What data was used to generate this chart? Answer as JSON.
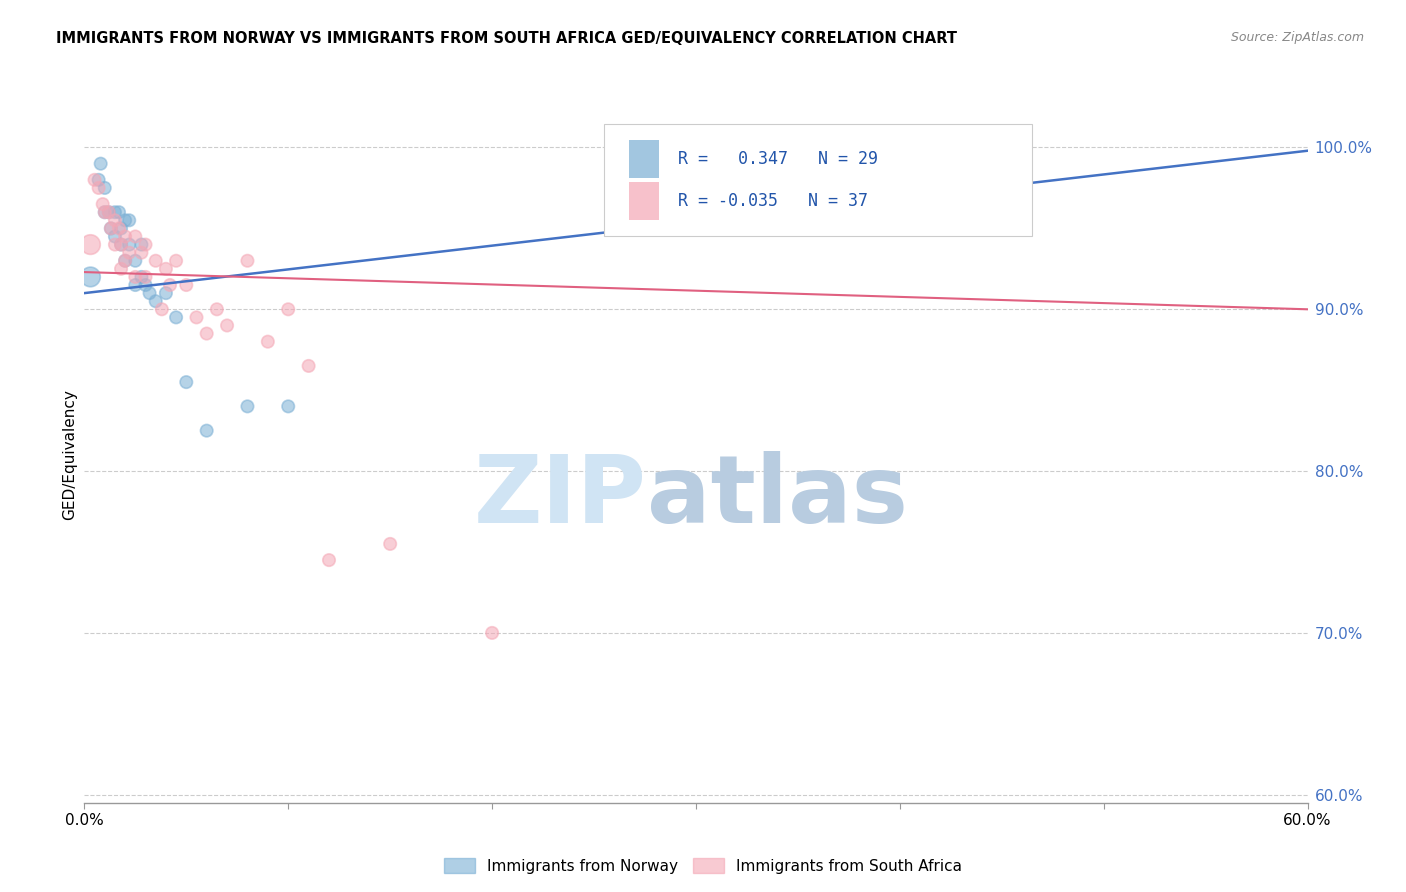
{
  "title": "IMMIGRANTS FROM NORWAY VS IMMIGRANTS FROM SOUTH AFRICA GED/EQUIVALENCY CORRELATION CHART",
  "source": "Source: ZipAtlas.com",
  "ylabel": "GED/Equivalency",
  "xlim": [
    0.0,
    0.6
  ],
  "ylim": [
    0.595,
    1.025
  ],
  "y_ticks": [
    0.6,
    0.7,
    0.8,
    0.9,
    1.0
  ],
  "y_tick_labels": [
    "60.0%",
    "70.0%",
    "80.0%",
    "90.0%",
    "100.0%"
  ],
  "x_tick_positions": [
    0.0,
    0.1,
    0.2,
    0.3,
    0.4,
    0.5,
    0.6
  ],
  "x_tick_labels": [
    "0.0%",
    "",
    "",
    "",
    "",
    "",
    "60.0%"
  ],
  "norway_R": 0.347,
  "norway_N": 29,
  "sa_R": -0.035,
  "sa_N": 37,
  "norway_color": "#7BAFD4",
  "sa_color": "#F4A7B5",
  "norway_line_color": "#4472C4",
  "sa_line_color": "#E06080",
  "legend_norway_label": "Immigrants from Norway",
  "legend_sa_label": "Immigrants from South Africa",
  "norway_scatter_x": [
    0.003,
    0.007,
    0.008,
    0.01,
    0.01,
    0.012,
    0.013,
    0.015,
    0.015,
    0.017,
    0.018,
    0.018,
    0.02,
    0.02,
    0.022,
    0.022,
    0.025,
    0.025,
    0.028,
    0.028,
    0.03,
    0.032,
    0.035,
    0.04,
    0.045,
    0.05,
    0.06,
    0.08,
    0.1
  ],
  "norway_scatter_y": [
    0.92,
    0.98,
    0.99,
    0.96,
    0.975,
    0.96,
    0.95,
    0.96,
    0.945,
    0.96,
    0.95,
    0.94,
    0.955,
    0.93,
    0.955,
    0.94,
    0.93,
    0.915,
    0.94,
    0.92,
    0.915,
    0.91,
    0.905,
    0.91,
    0.895,
    0.855,
    0.825,
    0.84,
    0.84
  ],
  "norway_scatter_size": [
    200,
    80,
    80,
    80,
    80,
    80,
    80,
    80,
    80,
    80,
    80,
    80,
    80,
    80,
    80,
    80,
    80,
    80,
    80,
    80,
    80,
    80,
    80,
    80,
    80,
    80,
    80,
    80,
    80
  ],
  "sa_scatter_x": [
    0.003,
    0.005,
    0.007,
    0.009,
    0.01,
    0.012,
    0.013,
    0.015,
    0.015,
    0.017,
    0.018,
    0.018,
    0.02,
    0.02,
    0.022,
    0.025,
    0.025,
    0.028,
    0.03,
    0.03,
    0.035,
    0.038,
    0.04,
    0.042,
    0.045,
    0.05,
    0.055,
    0.06,
    0.065,
    0.07,
    0.08,
    0.09,
    0.1,
    0.11,
    0.12,
    0.15,
    0.2
  ],
  "sa_scatter_y": [
    0.94,
    0.98,
    0.975,
    0.965,
    0.96,
    0.96,
    0.95,
    0.955,
    0.94,
    0.95,
    0.94,
    0.925,
    0.945,
    0.93,
    0.935,
    0.945,
    0.92,
    0.935,
    0.94,
    0.92,
    0.93,
    0.9,
    0.925,
    0.915,
    0.93,
    0.915,
    0.895,
    0.885,
    0.9,
    0.89,
    0.93,
    0.88,
    0.9,
    0.865,
    0.745,
    0.755,
    0.7
  ],
  "sa_scatter_size": [
    200,
    80,
    80,
    80,
    80,
    80,
    80,
    80,
    80,
    80,
    80,
    80,
    80,
    80,
    80,
    80,
    80,
    80,
    80,
    80,
    80,
    80,
    80,
    80,
    80,
    80,
    80,
    80,
    80,
    80,
    80,
    80,
    80,
    80,
    80,
    80,
    80
  ],
  "norway_line_x": [
    0.0,
    0.6
  ],
  "norway_line_y": [
    0.91,
    0.998
  ],
  "sa_line_x": [
    0.0,
    0.6
  ],
  "sa_line_y": [
    0.923,
    0.9
  ],
  "watermark_zip_color": "#D0E4F4",
  "watermark_atlas_color": "#B8CCE0"
}
